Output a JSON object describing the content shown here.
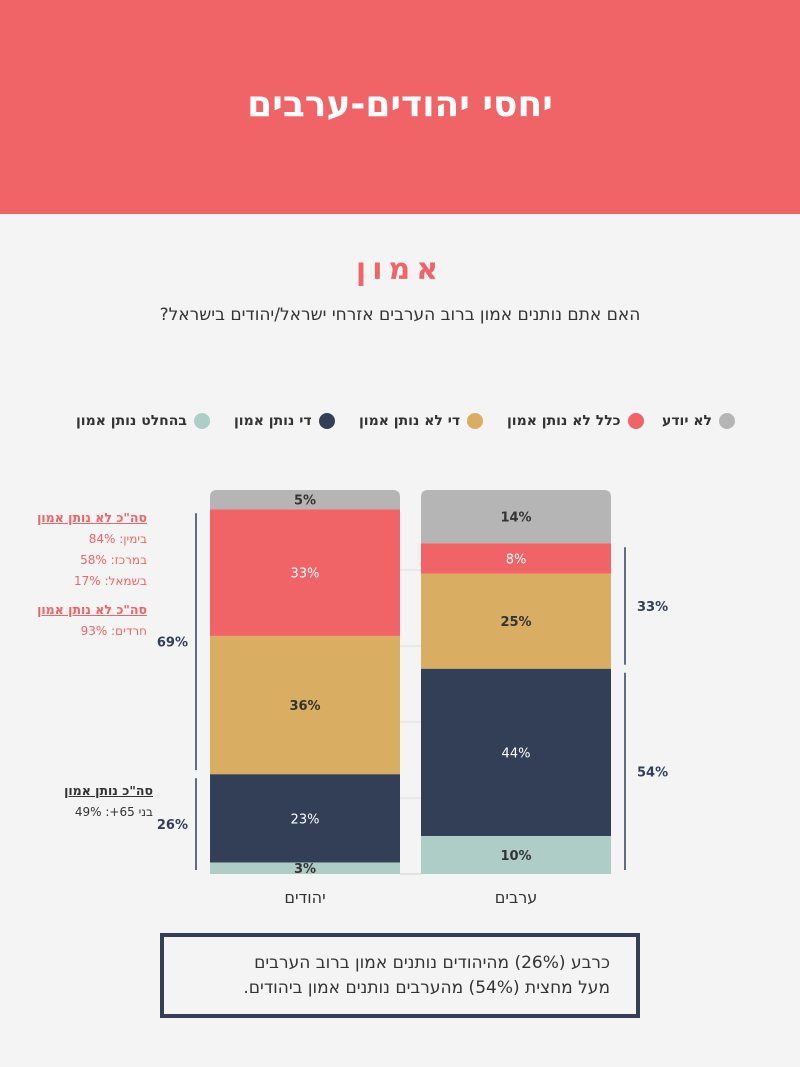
{
  "header": {
    "title": "יחסי יהודים-ערבים"
  },
  "section": {
    "title": "אמון",
    "question": "האם אתם נותנים אמון ברוב הערבים אזרחי ישראל/יהודים בישראל?"
  },
  "legend": [
    {
      "label": "לא יודע",
      "color": "#b5b5b5"
    },
    {
      "label": "כלל לא נותן אמון",
      "color": "#f06468"
    },
    {
      "label": "די לא נותן אמון",
      "color": "#d9ad62"
    },
    {
      "label": "די נותן אמון",
      "color": "#323f57"
    },
    {
      "label": "בהחלט נותן אמון",
      "color": "#aecdc6"
    }
  ],
  "chart_data": {
    "type": "bar",
    "stacked": true,
    "categories": [
      "יהודים",
      "ערבים"
    ],
    "ylim": [
      0,
      100
    ],
    "series": [
      {
        "name": "בהחלט נותן אמון",
        "values": [
          3,
          10
        ],
        "labels": [
          "3%",
          "10%"
        ],
        "color": "#aecdc6",
        "label_color": "#333333"
      },
      {
        "name": "די נותן אמון",
        "values": [
          23,
          44
        ],
        "labels": [
          "23%",
          "44%"
        ],
        "color": "#323f57",
        "label_color": "#ffffff"
      },
      {
        "name": "די לא נותן אמון",
        "values": [
          36,
          25
        ],
        "labels": [
          "36%",
          "25%"
        ],
        "color": "#d9ad62",
        "label_color": "#333333"
      },
      {
        "name": "כלל לא נותן אמון",
        "values": [
          33,
          8
        ],
        "labels": [
          "33%",
          "8%"
        ],
        "color": "#f06468",
        "label_color": "#ffffff"
      },
      {
        "name": "לא יודע",
        "values": [
          5,
          14
        ],
        "labels": [
          "5%",
          "14%"
        ],
        "color": "#b5b5b5",
        "label_color": "#333333"
      }
    ],
    "brackets": [
      {
        "category": "יהודים",
        "side": "left",
        "from_series": 2,
        "to_series": 3,
        "label": "69%"
      },
      {
        "category": "יהודים",
        "side": "left",
        "from_series": 0,
        "to_series": 1,
        "label": "26%"
      },
      {
        "category": "ערבים",
        "side": "right",
        "from_series": 2,
        "to_series": 3,
        "label": "33%"
      },
      {
        "category": "ערבים",
        "side": "right",
        "from_series": 0,
        "to_series": 1,
        "label": "54%"
      }
    ]
  },
  "notes": {
    "distrust": {
      "heading": "סה\"כ לא נותן אמון",
      "lines": [
        "בימין: 84%",
        "במרכז: 58%",
        "בשמאל: 17%"
      ]
    },
    "distrust_haredi": {
      "heading": "סה\"כ לא נותן אמון",
      "lines": [
        "חרדים: 93%"
      ]
    },
    "trust": {
      "heading": "סה\"כ נותן אמון",
      "lines": [
        "בני 65+: 49%"
      ]
    }
  },
  "callout": {
    "line1": "כרבע (26%) מהיהודים נותנים אמון ברוב הערבים",
    "line2": "מעל מחצית (54%) מהערבים נותנים אמון ביהודים."
  }
}
